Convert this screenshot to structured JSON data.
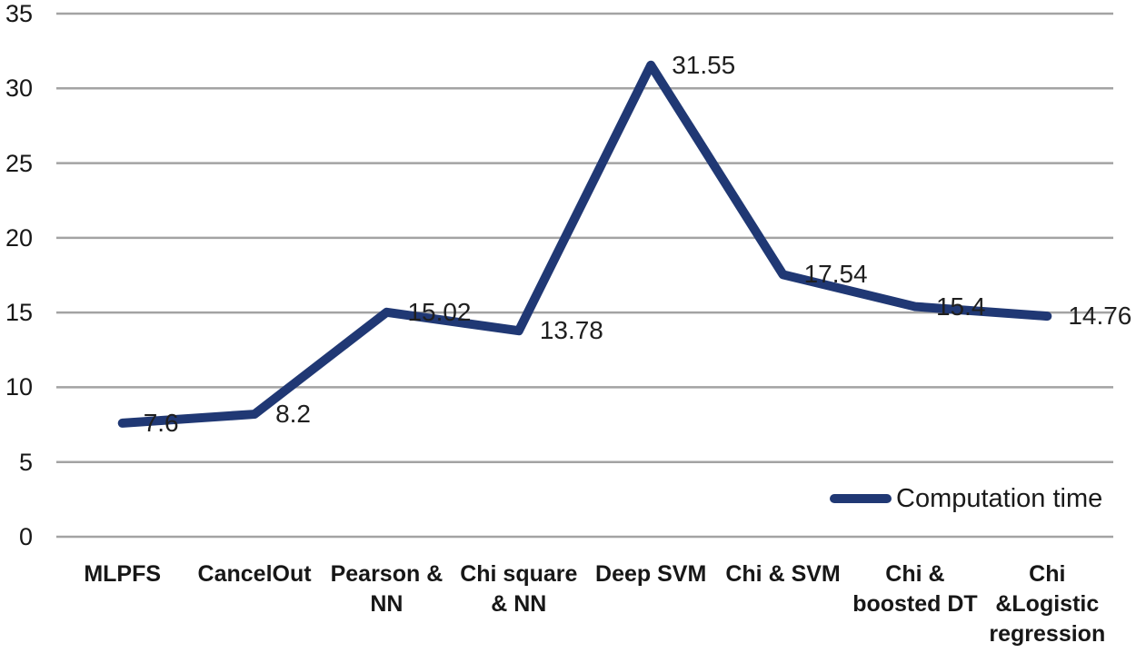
{
  "chart_data": {
    "type": "line",
    "title": "",
    "xlabel": "",
    "ylabel": "",
    "categories": [
      "MLPFS",
      "CancelOut",
      "Pearson & NN",
      "Chi square & NN",
      "Deep SVM",
      "Chi & SVM",
      "Chi & boosted DT",
      "Chi &Logistic regression"
    ],
    "category_display": [
      [
        "MLPFS"
      ],
      [
        "CancelOut"
      ],
      [
        "Pearson &",
        "NN"
      ],
      [
        "Chi square",
        "& NN"
      ],
      [
        "Deep SVM"
      ],
      [
        "Chi & SVM"
      ],
      [
        "Chi &",
        "boosted DT"
      ],
      [
        "Chi",
        "&Logistic",
        "regression"
      ]
    ],
    "series": [
      {
        "name": "Computation time",
        "values": [
          7.6,
          8.2,
          15.02,
          13.78,
          31.55,
          17.54,
          15.4,
          14.76
        ]
      }
    ],
    "data_labels": [
      "7.6",
      "8.2",
      "15.02",
      "13.78",
      "31.55",
      "17.54",
      "15.4",
      "14.76"
    ],
    "yticks": [
      0,
      5,
      10,
      15,
      20,
      25,
      30,
      35
    ],
    "ylim": [
      0,
      35
    ],
    "grid": true,
    "legend": {
      "label": "Computation time",
      "position": "bottom-right"
    },
    "colors": {
      "line": "#203874",
      "gridline": "#a3a3a3",
      "text": "#171717"
    }
  }
}
